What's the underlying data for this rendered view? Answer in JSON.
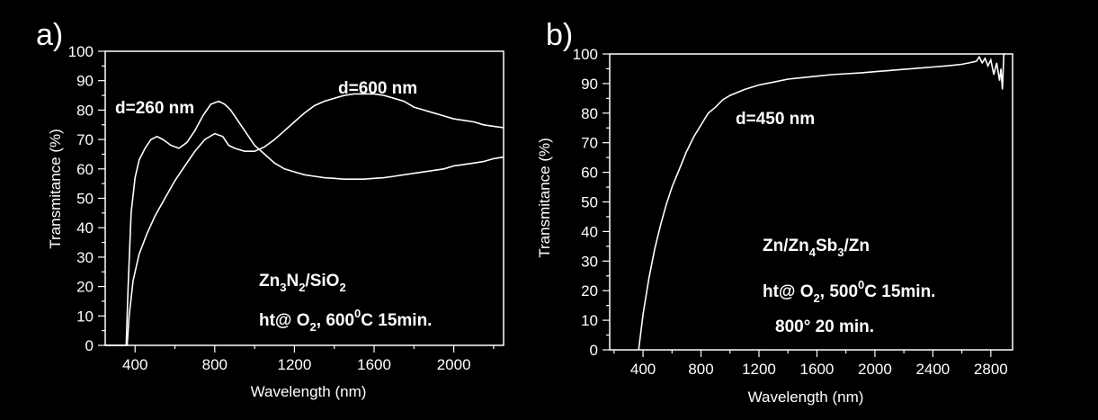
{
  "chart_data": [
    {
      "panel_label": "a)",
      "type": "line",
      "xlabel": "Wavelength (nm)",
      "ylabel": "Transmitance (%)",
      "xlim": [
        250,
        2250
      ],
      "ylim": [
        0,
        100
      ],
      "xticks": [
        400,
        800,
        1200,
        1600,
        2000
      ],
      "yticks": [
        0,
        10,
        20,
        30,
        40,
        50,
        60,
        70,
        80,
        90,
        100
      ],
      "line_color": "#ffffff",
      "annotations": {
        "series_a_label": "d=260 nm",
        "series_b_label": "d=600 nm",
        "sample_base": "Zn",
        "sample_sub1": "3",
        "sample_mid": "N",
        "sample_sub2": "2",
        "sample_mid2": "/SiO",
        "sample_sub3": "2",
        "treat_pre": "ht@ O",
        "treat_sub": "2",
        "treat_mid": ", 600",
        "treat_sup": "0",
        "treat_post": "C 15min."
      },
      "series": [
        {
          "x": [
            250,
            300,
            340,
            355,
            365,
            380,
            400,
            420,
            450,
            480,
            510,
            540,
            580,
            620,
            660,
            700,
            740,
            780,
            820,
            850,
            880,
            920,
            960,
            1000,
            1050,
            1100,
            1150,
            1200,
            1250,
            1300,
            1350,
            1400,
            1450,
            1500,
            1550,
            1600,
            1650,
            1700,
            1750,
            1800,
            1850,
            1900,
            1950,
            2000,
            2050,
            2100,
            2150,
            2200,
            2250
          ],
          "y": [
            0,
            0,
            0,
            0,
            20,
            45,
            57,
            63,
            67,
            70,
            71,
            70,
            68,
            67,
            69,
            73,
            78,
            82,
            83,
            82,
            80,
            76,
            72,
            68,
            65,
            62,
            60,
            59,
            58,
            57.5,
            57,
            56.8,
            56.5,
            56.5,
            56.5,
            56.8,
            57,
            57.5,
            58,
            58.5,
            59,
            59.5,
            60,
            61,
            61.5,
            62,
            62.5,
            63.5,
            64
          ]
        },
        {
          "x": [
            250,
            300,
            340,
            360,
            370,
            390,
            420,
            460,
            500,
            550,
            600,
            650,
            700,
            750,
            800,
            840,
            870,
            900,
            950,
            1000,
            1050,
            1100,
            1150,
            1200,
            1250,
            1300,
            1350,
            1400,
            1450,
            1500,
            1550,
            1600,
            1650,
            1700,
            1750,
            1800,
            1850,
            1900,
            1950,
            2000,
            2050,
            2100,
            2150,
            2200,
            2250
          ],
          "y": [
            0,
            0,
            0,
            0,
            10,
            22,
            31,
            38,
            44,
            50,
            56,
            61,
            66,
            70,
            72,
            71,
            68,
            67,
            66,
            66,
            67.5,
            70,
            73,
            76,
            79,
            81.5,
            83,
            84,
            85,
            85.5,
            85.5,
            85.5,
            85,
            84,
            83,
            81,
            80,
            79,
            78,
            77,
            76.5,
            76,
            75,
            74.5,
            74
          ]
        }
      ]
    },
    {
      "panel_label": "b)",
      "type": "line",
      "xlabel": "Wavelength (nm)",
      "ylabel": "Transmitance (%)",
      "xlim": [
        170,
        2950
      ],
      "ylim": [
        0,
        100
      ],
      "xticks": [
        400,
        800,
        1200,
        1600,
        2000,
        2400,
        2800
      ],
      "yticks": [
        0,
        10,
        20,
        30,
        40,
        50,
        60,
        70,
        80,
        90,
        100
      ],
      "line_color": "#ffffff",
      "annotations": {
        "series_label": "d=450 nm",
        "sample_pre": "Zn/Zn",
        "sample_sub1": "4",
        "sample_mid": "Sb",
        "sample_sub2": "3",
        "sample_post": "/Zn",
        "treat_pre": "ht@ O",
        "treat_sub": "2",
        "treat_mid": ", 500",
        "treat_sup": "0",
        "treat_post": "C 15min.",
        "treat2": "800° 20 min."
      },
      "series": [
        {
          "x": [
            370,
            400,
            440,
            480,
            520,
            560,
            600,
            650,
            700,
            750,
            800,
            850,
            900,
            950,
            1000,
            1100,
            1200,
            1300,
            1400,
            1500,
            1600,
            1700,
            1800,
            1900,
            2000,
            2100,
            2200,
            2300,
            2400,
            2500,
            2600,
            2650,
            2700,
            2720,
            2740,
            2760,
            2780,
            2800,
            2820,
            2840,
            2860,
            2870,
            2880,
            2890,
            2900
          ],
          "y": [
            0,
            12,
            24,
            34,
            42,
            49,
            55,
            61,
            67,
            72,
            76,
            80,
            82,
            84.5,
            86,
            88,
            89.5,
            90.5,
            91.5,
            92,
            92.5,
            93,
            93.3,
            93.6,
            94,
            94.4,
            94.8,
            95.2,
            95.6,
            96,
            96.5,
            97,
            97.5,
            99,
            97,
            98.5,
            96,
            98,
            93,
            97,
            91,
            95,
            88,
            100,
            100
          ]
        }
      ]
    }
  ]
}
